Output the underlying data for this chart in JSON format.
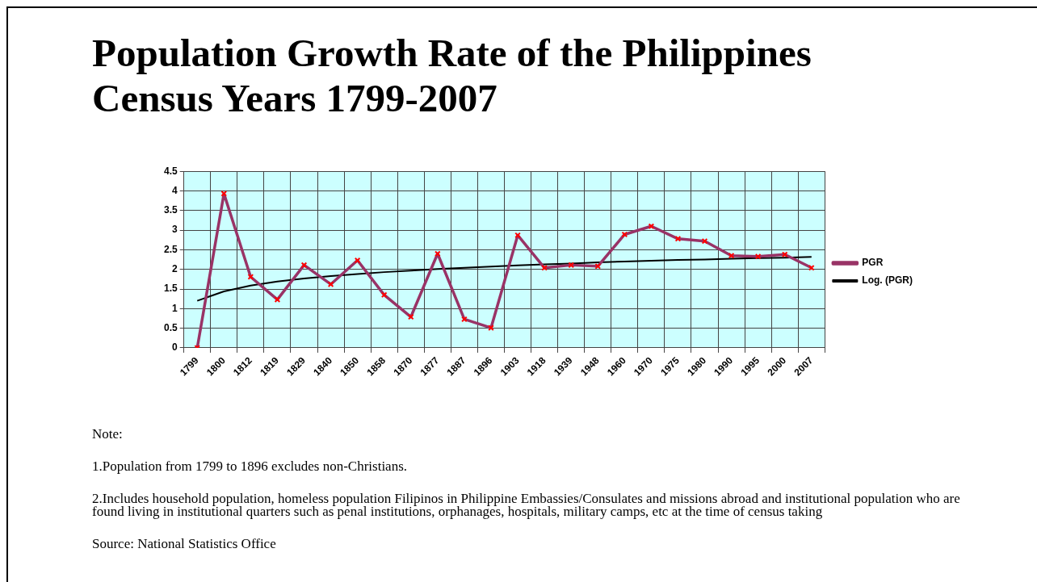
{
  "chart_data": {
    "type": "line",
    "title": "Population Growth Rate of the Philippines\nCensus Years 1799-2007",
    "categories": [
      "1799",
      "1800",
      "1812",
      "1819",
      "1829",
      "1840",
      "1850",
      "1858",
      "1870",
      "1877",
      "1887",
      "1896",
      "1903",
      "1918",
      "1939",
      "1948",
      "1960",
      "1970",
      "1975",
      "1980",
      "1990",
      "1995",
      "2000",
      "2007"
    ],
    "series": [
      {
        "name": "PGR",
        "color": "#993366",
        "marker": "cross",
        "values": [
          0,
          3.93,
          1.81,
          1.23,
          2.11,
          1.62,
          2.23,
          1.35,
          0.79,
          2.4,
          0.73,
          0.51,
          2.87,
          2.04,
          2.11,
          2.08,
          2.89,
          3.1,
          2.78,
          2.72,
          2.35,
          2.33,
          2.38,
          2.04
        ]
      },
      {
        "name": "Log. (PGR)",
        "color": "#000000",
        "marker": "none",
        "values": [
          1.2,
          1.44,
          1.59,
          1.69,
          1.77,
          1.83,
          1.88,
          1.93,
          1.97,
          2.01,
          2.04,
          2.07,
          2.1,
          2.13,
          2.15,
          2.18,
          2.2,
          2.22,
          2.24,
          2.25,
          2.27,
          2.29,
          2.3,
          2.32
        ]
      }
    ],
    "ylim": [
      0,
      4.5
    ],
    "yticks": [
      0,
      0.5,
      1,
      1.5,
      2,
      2.5,
      3,
      3.5,
      4,
      4.5
    ],
    "grid": true,
    "legend": "right",
    "annotations": [
      "Note:",
      "1.Population from 1799 to 1896 excludes non-Christians.",
      "2.Includes household population, homeless population Filipinos in Philippine Embassies/Consulates and missions abroad and institutional population who are found living in institutional quarters such as penal institutions, orphanages, hospitals, military camps, etc at the time of census taking",
      "Source: National Statistics Office"
    ]
  }
}
